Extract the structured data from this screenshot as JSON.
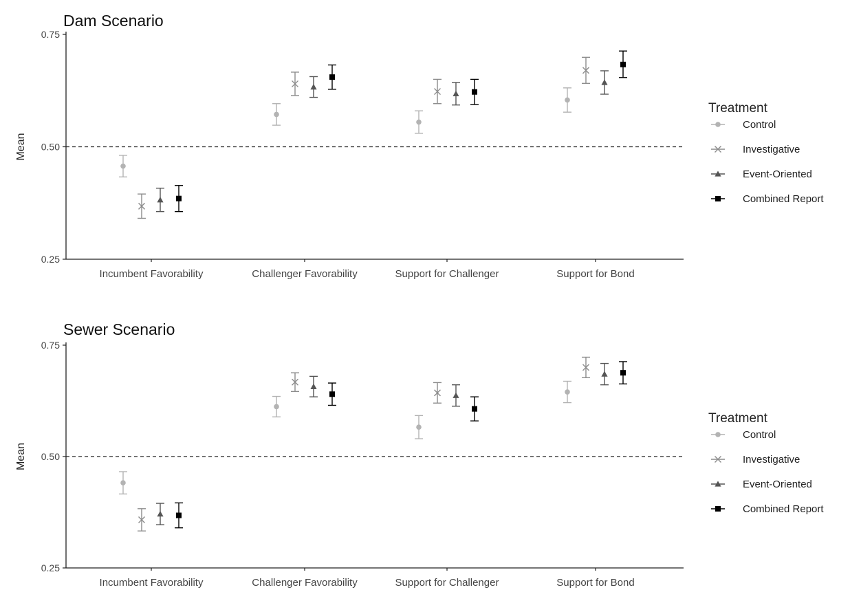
{
  "chart_data": [
    {
      "type": "scatter",
      "title": "Dam Scenario",
      "ylabel": "Mean",
      "xlabel": "",
      "ylim": [
        0.25,
        0.75
      ],
      "yticks": [
        "0.25",
        "0.50",
        "0.75"
      ],
      "reference_line": {
        "y": 0.5,
        "style": "dashed"
      },
      "categories": [
        "Incumbent Favorability",
        "Challenger Favorability",
        "Support for Challenger",
        "Support for Bond"
      ],
      "legend": {
        "title": "Treatment",
        "placement": "right"
      },
      "series": [
        {
          "name": "Control",
          "marker": "circle",
          "color": "#b3b3b3",
          "values": [
            0.457,
            0.572,
            0.555,
            0.604
          ],
          "lower": [
            0.433,
            0.548,
            0.53,
            0.577
          ],
          "upper": [
            0.481,
            0.596,
            0.58,
            0.631
          ]
        },
        {
          "name": "Investigative",
          "marker": "x",
          "color": "#8c8c8c",
          "values": [
            0.368,
            0.64,
            0.623,
            0.67
          ],
          "lower": [
            0.341,
            0.614,
            0.596,
            0.641
          ],
          "upper": [
            0.395,
            0.666,
            0.65,
            0.699
          ]
        },
        {
          "name": "Event-Oriented",
          "marker": "triangle",
          "color": "#555555",
          "values": [
            0.382,
            0.633,
            0.618,
            0.643
          ],
          "lower": [
            0.356,
            0.61,
            0.593,
            0.617
          ],
          "upper": [
            0.408,
            0.656,
            0.643,
            0.669
          ]
        },
        {
          "name": "Combined Report",
          "marker": "square",
          "color": "#000000",
          "values": [
            0.385,
            0.655,
            0.622,
            0.683
          ],
          "lower": [
            0.356,
            0.628,
            0.594,
            0.654
          ],
          "upper": [
            0.414,
            0.682,
            0.65,
            0.713
          ]
        }
      ]
    },
    {
      "type": "scatter",
      "title": "Sewer Scenario",
      "ylabel": "Mean",
      "xlabel": "",
      "ylim": [
        0.25,
        0.75
      ],
      "yticks": [
        "0.25",
        "0.50",
        "0.75"
      ],
      "reference_line": {
        "y": 0.5,
        "style": "dashed"
      },
      "categories": [
        "Incumbent Favorability",
        "Challenger Favorability",
        "Support for Challenger",
        "Support for Bond"
      ],
      "legend": {
        "title": "Treatment",
        "placement": "right"
      },
      "series": [
        {
          "name": "Control",
          "marker": "circle",
          "color": "#b3b3b3",
          "values": [
            0.441,
            0.612,
            0.566,
            0.645
          ],
          "lower": [
            0.416,
            0.589,
            0.54,
            0.621
          ],
          "upper": [
            0.466,
            0.635,
            0.592,
            0.669
          ]
        },
        {
          "name": "Investigative",
          "marker": "x",
          "color": "#8c8c8c",
          "values": [
            0.358,
            0.667,
            0.643,
            0.7
          ],
          "lower": [
            0.333,
            0.646,
            0.62,
            0.677
          ],
          "upper": [
            0.383,
            0.688,
            0.666,
            0.723
          ]
        },
        {
          "name": "Event-Oriented",
          "marker": "triangle",
          "color": "#555555",
          "values": [
            0.371,
            0.657,
            0.637,
            0.685
          ],
          "lower": [
            0.347,
            0.634,
            0.613,
            0.661
          ],
          "upper": [
            0.395,
            0.68,
            0.661,
            0.709
          ]
        },
        {
          "name": "Combined Report",
          "marker": "square",
          "color": "#000000",
          "values": [
            0.368,
            0.64,
            0.607,
            0.688
          ],
          "lower": [
            0.34,
            0.615,
            0.58,
            0.663
          ],
          "upper": [
            0.396,
            0.665,
            0.634,
            0.713
          ]
        }
      ]
    }
  ]
}
